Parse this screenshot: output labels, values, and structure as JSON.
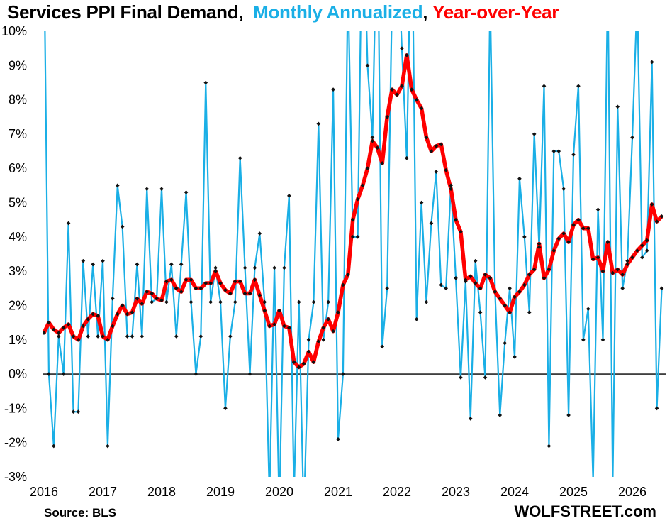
{
  "title": {
    "part1": "Services PPI Final Demand,",
    "part2": "Monthly Annualized",
    "sep": ",",
    "part3": "Year-over-Year",
    "color_part1": "#000000",
    "color_part2": "#1AAFE6",
    "color_part3": "#FF0000"
  },
  "source": "Source: BLS",
  "brand": "WOLFSTREET.com",
  "chart_data": {
    "type": "line",
    "x_start": "2016-01",
    "x_ticks": [
      "2016",
      "2017",
      "2018",
      "2019",
      "2020",
      "2021",
      "2022",
      "2023",
      "2024",
      "2025",
      "2026"
    ],
    "y_ticks": [
      "10%",
      "9%",
      "8%",
      "7%",
      "6%",
      "5%",
      "4%",
      "3%",
      "2%",
      "1%",
      "0%",
      "-1%",
      "-2%",
      "-3%"
    ],
    "ylim": [
      -3,
      10
    ],
    "grid": false,
    "series": [
      {
        "name": "Monthly Annualized",
        "color": "#1AAFE6",
        "values": [
          12.5,
          0,
          -2.1,
          1.1,
          0,
          4.4,
          -1.1,
          -1.1,
          3.3,
          1.1,
          3.2,
          1.1,
          3.3,
          -2.1,
          2.2,
          5.5,
          4.3,
          1.1,
          1.1,
          3.2,
          1.1,
          5.4,
          2.1,
          2.2,
          5.4,
          2.1,
          3.2,
          1.1,
          3.2,
          5.3,
          2.1,
          0,
          1.1,
          8.5,
          2.1,
          3.1,
          2.1,
          -1.0,
          1.1,
          2.1,
          6.3,
          3.1,
          0,
          3.1,
          4.1,
          2.1,
          -3.6,
          3.1,
          -4.0,
          3.1,
          5.2,
          -3.5,
          2.1,
          -4.2,
          1.0,
          2.1,
          7.3,
          1.0,
          2.1,
          8.3,
          -1.9,
          0,
          11.5,
          4.0,
          4.0,
          14.5,
          9.0,
          6.9,
          14.0,
          0.8,
          2.5,
          11.0,
          13.0,
          9.5,
          6.3,
          14.0,
          1.6,
          5.0,
          2.1,
          4.4,
          5.9,
          2.6,
          2.5,
          5.5,
          2.8,
          -0.1,
          2.7,
          -1.3,
          3.3,
          1.8,
          -0.1,
          11.0,
          2.4,
          -1.2,
          0.9,
          2.5,
          0.5,
          5.7,
          4.0,
          1.8,
          7.0,
          3.7,
          8.4,
          -2.1,
          6.5,
          6.5,
          5.4,
          -1.2,
          6.4,
          8.4,
          1.0,
          1.9,
          -3.1,
          4.8,
          1.0,
          11.5,
          -3.2,
          7.8,
          2.5,
          3.3,
          6.9,
          11.0,
          3.4,
          3.6,
          9.1,
          -1.0,
          2.5
        ]
      },
      {
        "name": "Year-over-Year",
        "color": "#FF0000",
        "values": [
          1.2,
          1.5,
          1.3,
          1.2,
          1.35,
          1.45,
          1.1,
          1.0,
          1.4,
          1.6,
          1.75,
          1.7,
          1.1,
          1.0,
          1.4,
          1.75,
          2.0,
          1.75,
          1.8,
          2.2,
          2.05,
          2.4,
          2.35,
          2.2,
          2.15,
          2.7,
          2.75,
          2.5,
          2.4,
          2.75,
          2.75,
          2.5,
          2.5,
          2.65,
          2.65,
          3.0,
          2.65,
          2.45,
          2.35,
          2.7,
          2.7,
          2.35,
          2.35,
          2.75,
          2.3,
          1.85,
          1.4,
          1.45,
          1.85,
          1.4,
          1.35,
          0.35,
          0.2,
          0.3,
          0.65,
          0.35,
          0.95,
          1.35,
          1.6,
          1.25,
          1.8,
          2.6,
          2.9,
          4.5,
          5.1,
          5.5,
          6.0,
          6.8,
          6.6,
          6.15,
          7.5,
          8.3,
          8.15,
          8.4,
          9.3,
          8.3,
          8.0,
          7.75,
          6.9,
          6.5,
          6.65,
          6.7,
          5.95,
          5.4,
          4.5,
          4.15,
          2.75,
          2.85,
          2.65,
          2.5,
          2.9,
          2.8,
          2.4,
          2.2,
          2.0,
          1.8,
          2.25,
          2.4,
          2.6,
          2.9,
          3.05,
          3.8,
          2.8,
          3.05,
          3.6,
          3.95,
          4.1,
          3.85,
          4.35,
          4.5,
          4.25,
          4.25,
          3.35,
          3.4,
          3.0,
          3.85,
          2.95,
          3.05,
          2.9,
          3.2,
          3.4,
          3.6,
          3.75,
          3.9,
          4.95,
          4.45,
          4.6
        ]
      }
    ]
  }
}
